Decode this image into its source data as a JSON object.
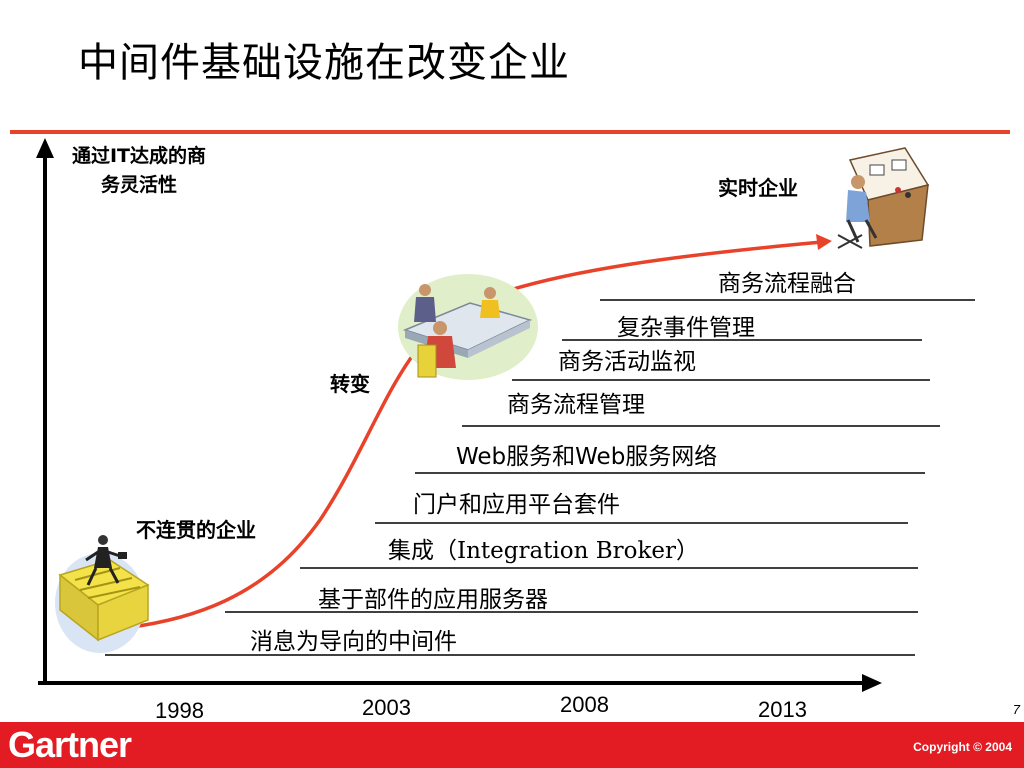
{
  "title": "中间件基础设施在改变企业",
  "y_axis_label": "通过IT达成的商务灵活性",
  "stages": {
    "fragmented": "不连贯的企业",
    "transform": "转变",
    "realtime": "实时企业"
  },
  "layers": [
    "消息为导向的中间件",
    "基于部件的应用服务器",
    "集成（Integration Broker）",
    "门户和应用平台套件",
    "Web服务和Web服务网络",
    "商务流程管理",
    "商务活动监视",
    "复杂事件管理",
    "商务流程融合"
  ],
  "years": [
    "1998",
    "2003",
    "2008",
    "2013"
  ],
  "footer": {
    "brand": "Gartner",
    "copyright": "Copyright © 2004",
    "page_number": "7"
  },
  "colors": {
    "accent_red": "#e31b23",
    "curve": "#e8432a",
    "axis": "#000000"
  },
  "icons": [
    "maze-businessman-clipart",
    "meeting-clipart",
    "control-room-clipart"
  ]
}
